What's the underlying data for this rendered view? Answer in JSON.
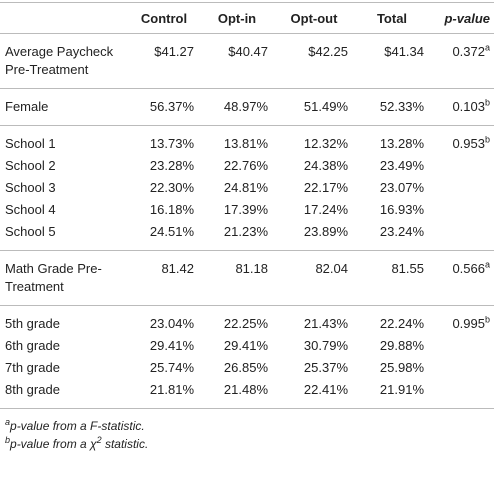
{
  "table": {
    "header": [
      "Control",
      "Opt-in",
      "Opt-out",
      "Total",
      "p-value"
    ],
    "groups": [
      {
        "rows": [
          {
            "label": "Average Paycheck Pre-Treatment",
            "cells": [
              "$41.27",
              "$40.47",
              "$42.25",
              "$41.34"
            ],
            "p": "0.372",
            "p_note": "a"
          }
        ]
      },
      {
        "rows": [
          {
            "label": "Female",
            "cells": [
              "56.37%",
              "48.97%",
              "51.49%",
              "52.33%"
            ],
            "p": "0.103",
            "p_note": "b"
          }
        ]
      },
      {
        "rows": [
          {
            "label": "School 1",
            "cells": [
              "13.73%",
              "13.81%",
              "12.32%",
              "13.28%"
            ],
            "p": "0.953",
            "p_note": "b"
          },
          {
            "label": "School 2",
            "cells": [
              "23.28%",
              "22.76%",
              "24.38%",
              "23.49%"
            ]
          },
          {
            "label": "School 3",
            "cells": [
              "22.30%",
              "24.81%",
              "22.17%",
              "23.07%"
            ]
          },
          {
            "label": "School 4",
            "cells": [
              "16.18%",
              "17.39%",
              "17.24%",
              "16.93%"
            ]
          },
          {
            "label": "School 5",
            "cells": [
              "24.51%",
              "21.23%",
              "23.89%",
              "23.24%"
            ]
          }
        ]
      },
      {
        "rows": [
          {
            "label": "Math Grade Pre-Treatment",
            "cells": [
              "81.42",
              "81.18",
              "82.04",
              "81.55"
            ],
            "p": "0.566",
            "p_note": "a"
          }
        ]
      },
      {
        "rows": [
          {
            "label": "5th grade",
            "cells": [
              "23.04%",
              "22.25%",
              "21.43%",
              "22.24%"
            ],
            "p": "0.995",
            "p_note": "b"
          },
          {
            "label": "6th grade",
            "cells": [
              "29.41%",
              "29.41%",
              "30.79%",
              "29.88%"
            ]
          },
          {
            "label": "7th grade",
            "cells": [
              "25.74%",
              "26.85%",
              "25.37%",
              "25.98%"
            ]
          },
          {
            "label": "8th grade",
            "cells": [
              "21.81%",
              "21.48%",
              "22.41%",
              "21.91%"
            ]
          }
        ]
      }
    ]
  },
  "footnotes": [
    {
      "mark": "a",
      "text": "p-value from a F-statistic."
    },
    {
      "mark": "b",
      "text": "p-value from a χ",
      "sup": "2",
      "after": " statistic."
    }
  ]
}
